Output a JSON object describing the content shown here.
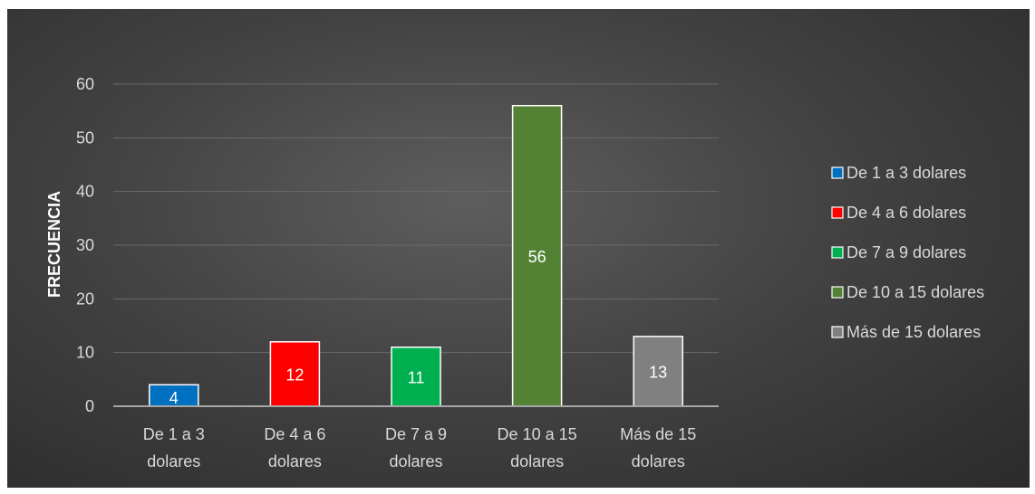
{
  "chart_data": {
    "type": "bar",
    "title": "",
    "xlabel": "",
    "ylabel": "FRECUENCIA",
    "ylim": [
      0,
      60
    ],
    "yticks": [
      0,
      10,
      20,
      30,
      40,
      50,
      60
    ],
    "grid": true,
    "legend_position": "right",
    "categories": [
      [
        "De 1 a 3",
        "dolares"
      ],
      [
        "De 4 a 6",
        "dolares"
      ],
      [
        "De 7 a 9",
        "dolares"
      ],
      [
        "De 10 a 15",
        "dolares"
      ],
      [
        "Más de 15",
        "dolares"
      ]
    ],
    "values": [
      4,
      12,
      11,
      56,
      13
    ],
    "colors": [
      "#0070c0",
      "#ff0000",
      "#00b050",
      "#548235",
      "#808080"
    ],
    "legend": [
      "De 1 a 3 dolares",
      "De 4 a 6 dolares",
      "De 7 a 9 dolares",
      "De 10 a 15 dolares",
      "Más de 15 dolares"
    ]
  }
}
